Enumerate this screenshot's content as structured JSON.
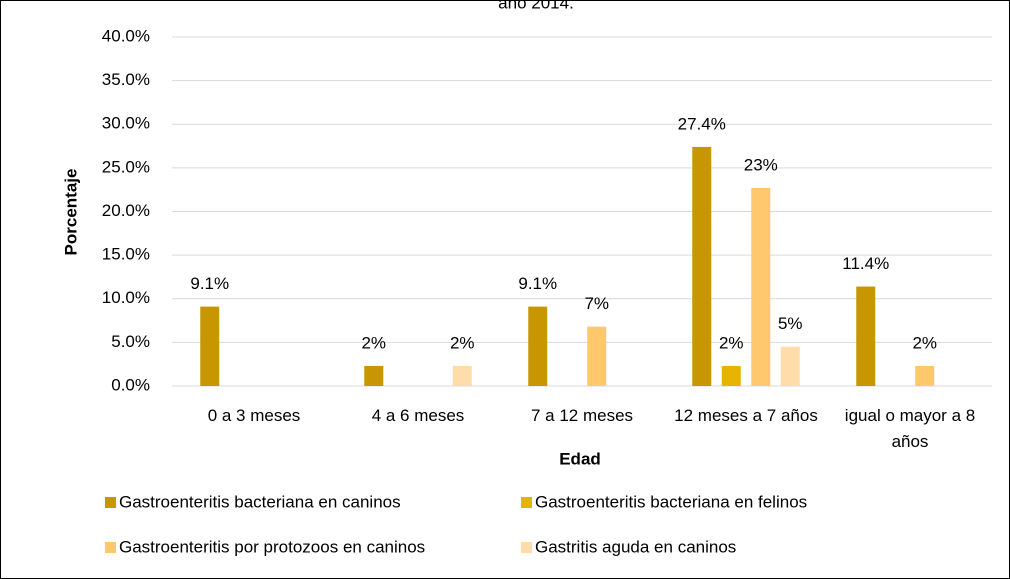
{
  "chart_data": {
    "type": "bar",
    "title": "año 2014.",
    "x_label": "Edad",
    "y_label": "Porcentaje",
    "categories": [
      "0 a 3 meses",
      "4 a 6 meses",
      "7 a 12 meses",
      "12 meses a 7 años",
      "igual o mayor a 8 años"
    ],
    "series": [
      {
        "name": "Gastroenteritis bacteriana en caninos",
        "color": "#c89600",
        "values": [
          9.1,
          2.3,
          9.1,
          27.4,
          11.4
        ],
        "value_labels": [
          "9.1%",
          "2%",
          "9.1%",
          "27.4%",
          "11.4%"
        ]
      },
      {
        "name": "Gastroenteritis bacteriana en felinos",
        "color": "#e6b400",
        "values": [
          0,
          0,
          0,
          2.3,
          0
        ],
        "value_labels": [
          null,
          null,
          null,
          "2%",
          null
        ]
      },
      {
        "name": "Gastroenteritis por protozoos en caninos",
        "color": "#ffc86e",
        "values": [
          0,
          0,
          6.8,
          22.7,
          2.3
        ],
        "value_labels": [
          null,
          null,
          "7%",
          "23%",
          "2%"
        ]
      },
      {
        "name": "Gastritis aguda en caninos",
        "color": "#ffdcaa",
        "values": [
          0,
          2.3,
          0,
          4.5,
          0
        ],
        "value_labels": [
          null,
          "2%",
          null,
          "5%",
          null
        ]
      }
    ],
    "ylim": [
      0,
      40
    ],
    "yticks": [
      {
        "value": 0,
        "label": "0.0%"
      },
      {
        "value": 5,
        "label": "5.0%"
      },
      {
        "value": 10,
        "label": "10.0%"
      },
      {
        "value": 15,
        "label": "15.0%"
      },
      {
        "value": 20,
        "label": "20.0%"
      },
      {
        "value": 25,
        "label": "25.0%"
      },
      {
        "value": 30,
        "label": "30.0%"
      },
      {
        "value": 35,
        "label": "35.0%"
      },
      {
        "value": 40,
        "label": "40.0%"
      }
    ],
    "grid": true,
    "legend": "bottom"
  }
}
